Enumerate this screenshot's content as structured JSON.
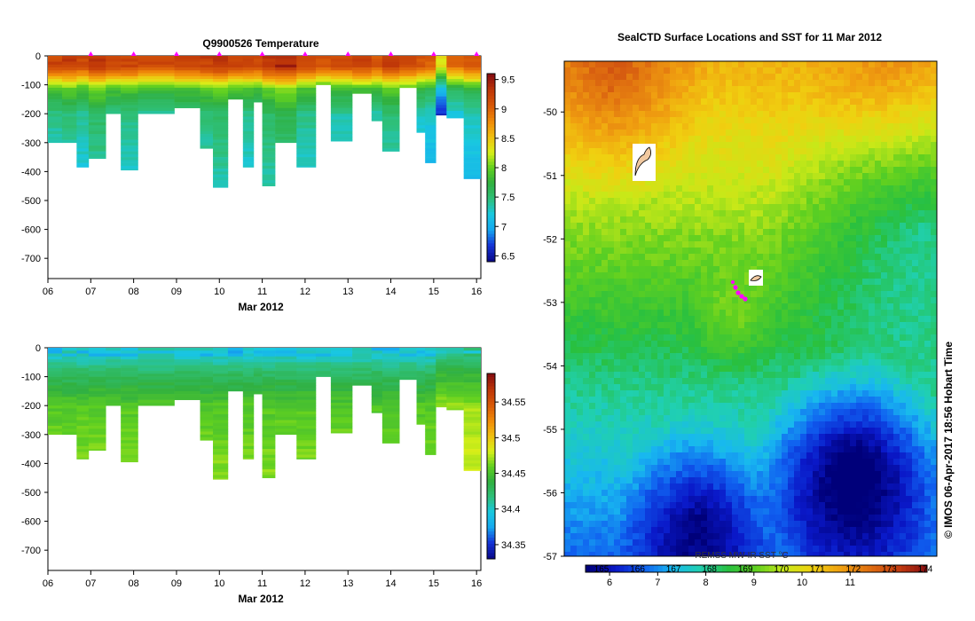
{
  "colors": {
    "temperature": [
      "#0a0a8c",
      "#1535d8",
      "#15a8f0",
      "#19c8e0",
      "#2ec07a",
      "#30b040",
      "#60d020",
      "#d8f018",
      "#f0c010",
      "#f08a08",
      "#d85a08",
      "#c03808",
      "#8a1010"
    ],
    "salinity": [
      "#0a0a8c",
      "#1535d8",
      "#15a8f0",
      "#19c8e0",
      "#2ec07a",
      "#30b040",
      "#60d020",
      "#d8f018",
      "#f0c010",
      "#f08a08",
      "#d85a08",
      "#c03808",
      "#8a1010"
    ],
    "sst": [
      "#00007a",
      "#0a18c8",
      "#1060f0",
      "#18b8f0",
      "#20d0b0",
      "#28c040",
      "#60d020",
      "#c8e818",
      "#f0d010",
      "#f0a010",
      "#e07010",
      "#c84010",
      "#8a1010"
    ],
    "marker": "#ff00ff",
    "frame": "#000000"
  },
  "chart_data": [
    {
      "id": "temperature",
      "type": "heatmap",
      "title": "Q9900526  Temperature",
      "xlabel": "Mar 2012",
      "ylabel": "",
      "x_ticks": [
        "06",
        "07",
        "08",
        "09",
        "10",
        "11",
        "12",
        "13",
        "14",
        "15",
        "16"
      ],
      "xlim": [
        6,
        16.1
      ],
      "y_ticks": [
        "0",
        "-100",
        "-200",
        "-300",
        "-400",
        "-500",
        "-600",
        "-700"
      ],
      "ylim": [
        -770,
        0
      ],
      "colorbar": {
        "ticks": [
          "9.5",
          "9",
          "8.5",
          "8",
          "7.5",
          "7",
          "6.5"
        ],
        "range": [
          6.4,
          9.6
        ]
      },
      "profile_markers_day": [
        7.0,
        8.0,
        9.0,
        10.0,
        11.0,
        12.0,
        13.0,
        14.0,
        15.0,
        16.0
      ],
      "profiles": [
        {
          "t0": 6.0,
          "t1": 6.33,
          "depth": 300,
          "surface_level": 0.86
        },
        {
          "t0": 6.33,
          "t1": 6.67,
          "depth": 300,
          "surface_level": 0.88
        },
        {
          "t0": 6.67,
          "t1": 6.95,
          "depth": 385,
          "surface_level": 0.85
        },
        {
          "t0": 6.95,
          "t1": 7.35,
          "depth": 355,
          "surface_level": 0.9
        },
        {
          "t0": 7.35,
          "t1": 7.7,
          "depth": 200,
          "surface_level": 0.86
        },
        {
          "t0": 7.7,
          "t1": 8.1,
          "depth": 395,
          "surface_level": 0.87
        },
        {
          "t0": 8.1,
          "t1": 8.95,
          "depth": 200,
          "surface_level": 0.84
        },
        {
          "t0": 8.95,
          "t1": 9.55,
          "depth": 180,
          "surface_level": 0.86
        },
        {
          "t0": 9.55,
          "t1": 9.85,
          "depth": 320,
          "surface_level": 0.88
        },
        {
          "t0": 9.85,
          "t1": 10.2,
          "depth": 455,
          "surface_level": 0.9
        },
        {
          "t0": 10.2,
          "t1": 10.55,
          "depth": 150,
          "surface_level": 0.87
        },
        {
          "t0": 10.55,
          "t1": 10.8,
          "depth": 385,
          "surface_level": 0.86
        },
        {
          "t0": 10.8,
          "t1": 11.0,
          "depth": 160,
          "surface_level": 0.85
        },
        {
          "t0": 11.0,
          "t1": 11.3,
          "depth": 450,
          "surface_level": 0.9
        },
        {
          "t0": 11.3,
          "t1": 11.8,
          "depth": 300,
          "surface_level": 0.93
        },
        {
          "t0": 11.8,
          "t1": 12.25,
          "depth": 385,
          "surface_level": 0.86
        },
        {
          "t0": 12.25,
          "t1": 12.6,
          "depth": 100,
          "surface_level": 0.82
        },
        {
          "t0": 12.6,
          "t1": 13.1,
          "depth": 295,
          "surface_level": 0.84
        },
        {
          "t0": 13.1,
          "t1": 13.55,
          "depth": 130,
          "surface_level": 0.86
        },
        {
          "t0": 13.55,
          "t1": 13.8,
          "depth": 225,
          "surface_level": 0.83
        },
        {
          "t0": 13.8,
          "t1": 14.2,
          "depth": 330,
          "surface_level": 0.88
        },
        {
          "t0": 14.2,
          "t1": 14.6,
          "depth": 110,
          "surface_level": 0.85
        },
        {
          "t0": 14.6,
          "t1": 14.8,
          "depth": 265,
          "surface_level": 0.82
        },
        {
          "t0": 14.8,
          "t1": 15.05,
          "depth": 370,
          "surface_level": 0.8
        },
        {
          "t0": 15.05,
          "t1": 15.3,
          "depth": 205,
          "surface_level": 0.6
        },
        {
          "t0": 15.3,
          "t1": 15.7,
          "depth": 215,
          "surface_level": 0.78
        },
        {
          "t0": 15.7,
          "t1": 16.1,
          "depth": 425,
          "surface_level": 0.82
        }
      ]
    },
    {
      "id": "salinity",
      "type": "heatmap",
      "title": "",
      "xlabel": "Mar 2012",
      "ylabel": "",
      "x_ticks": [
        "06",
        "07",
        "08",
        "09",
        "10",
        "11",
        "12",
        "13",
        "14",
        "15",
        "16"
      ],
      "xlim": [
        6,
        16.1
      ],
      "y_ticks": [
        "0",
        "-100",
        "-200",
        "-300",
        "-400",
        "-500",
        "-600",
        "-700"
      ],
      "ylim": [
        -770,
        0
      ],
      "colorbar": {
        "ticks": [
          "34.55",
          "34.5",
          "34.45",
          "34.4",
          "34.35"
        ],
        "range": [
          34.33,
          34.59
        ]
      }
    },
    {
      "id": "sst",
      "type": "heatmap",
      "title": "SealCTD Surface Locations and SST for 11 Mar 2012",
      "xlabel": "",
      "ylabel": "",
      "y_ticks": [
        "-50",
        "-51",
        "-52",
        "-53",
        "-54",
        "-55",
        "-56",
        "-57"
      ],
      "ylim": [
        -57.0,
        -49.2
      ],
      "colorbar": {
        "label": "REMSS MW-IR SST °C",
        "ticks_c": [
          "6",
          "7",
          "8",
          "9",
          "10",
          "11"
        ],
        "ticks_f": [
          "165",
          "166",
          "167",
          "168",
          "169",
          "170",
          "171",
          "172",
          "173",
          "174"
        ],
        "range_c": [
          5.5,
          12.6
        ]
      },
      "seal_track": [
        [
          -52.75,
          -0.25
        ],
        [
          -52.8,
          -0.1
        ],
        [
          -52.86,
          0.1
        ],
        [
          -52.82,
          0.0
        ],
        [
          -52.78,
          -0.18
        ]
      ]
    }
  ],
  "stamp": "© IMOS 06-Apr-2017 18:56 Hobart Time"
}
